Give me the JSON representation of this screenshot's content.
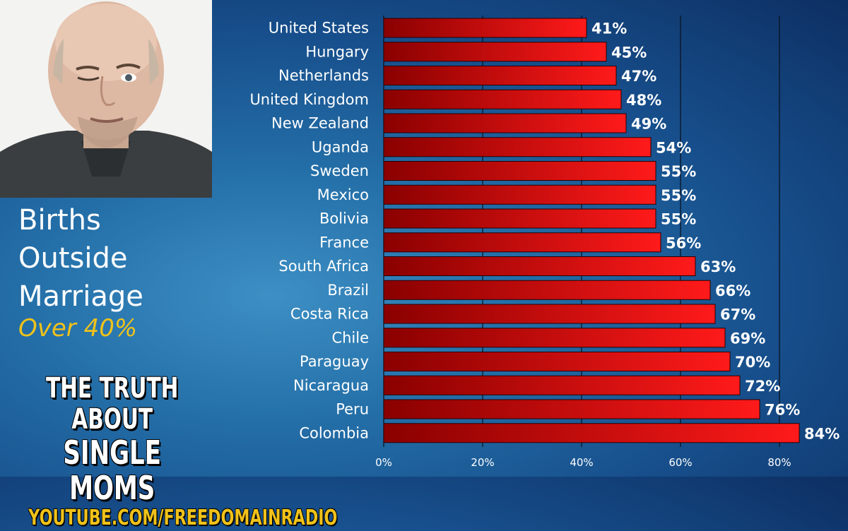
{
  "left_panel": {
    "title_lines": [
      "Births",
      "Outside",
      "Marriage"
    ],
    "subtitle": "Over 40%",
    "promo_line1": "THE TRUTH ABOUT",
    "promo_line2": "SINGLE MOMS",
    "promo_url": "YOUTUBE.COM/FREEDOMAINRADIO"
  },
  "colors": {
    "bar_dark": "#8a0000",
    "bar_light": "#ff1a1a",
    "subtitle": "#f0c21a",
    "text": "#ffffff"
  },
  "chart_data": {
    "type": "bar",
    "orientation": "horizontal",
    "categories": [
      "United States",
      "Hungary",
      "Netherlands",
      "United Kingdom",
      "New Zealand",
      "Uganda",
      "Sweden",
      "Mexico",
      "Bolivia",
      "France",
      "South Africa",
      "Brazil",
      "Costa Rica",
      "Chile",
      "Paraguay",
      "Nicaragua",
      "Peru",
      "Colombia"
    ],
    "values": [
      41,
      45,
      47,
      48,
      49,
      54,
      55,
      55,
      55,
      56,
      63,
      66,
      67,
      69,
      70,
      72,
      76,
      84
    ],
    "data_labels": [
      "41%",
      "45%",
      "47%",
      "48%",
      "49%",
      "54%",
      "55%",
      "55%",
      "55%",
      "56%",
      "63%",
      "66%",
      "67%",
      "69%",
      "70%",
      "72%",
      "76%",
      "84%"
    ],
    "x_ticks": [
      0,
      20,
      40,
      60,
      80
    ],
    "x_tick_labels": [
      "0%",
      "20%",
      "40%",
      "60%",
      "80%"
    ],
    "xlim": [
      0,
      90
    ],
    "grid": "vertical"
  }
}
